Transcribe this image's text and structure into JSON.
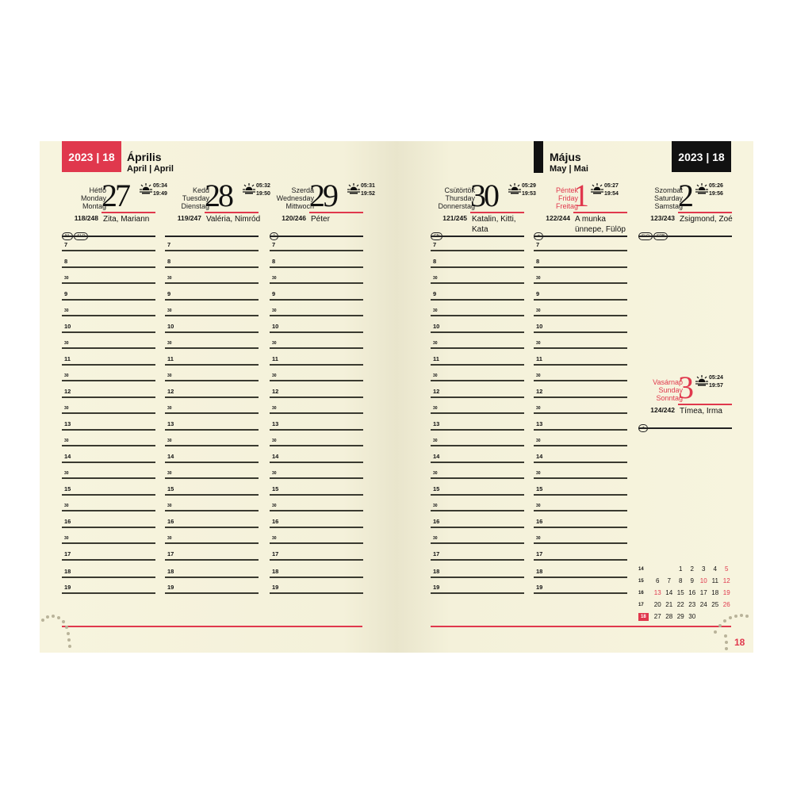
{
  "colors": {
    "accent": "#e0384d",
    "dark": "#111111",
    "paper": "#f6f3dc"
  },
  "left": {
    "badge": "2023 | 18",
    "month": "Április",
    "month_sub": "April | April"
  },
  "right": {
    "badge": "2023 | 18",
    "month": "Május",
    "month_sub": "May | Mai",
    "page_number": "18"
  },
  "days": [
    {
      "names": [
        "Hétfő",
        "Monday",
        "Montag"
      ],
      "num": "27",
      "rise": "05:34",
      "set": "19:49",
      "doy": "118/248",
      "nameday": "Zita, Mariann",
      "tags": [
        "NL",
        "SLO"
      ],
      "red": false
    },
    {
      "names": [
        "Kedd",
        "Tuesday",
        "Dienstag"
      ],
      "num": "28",
      "rise": "05:32",
      "set": "19:50",
      "doy": "119/247",
      "nameday": "Valéria, Nimród",
      "tags": [],
      "red": false
    },
    {
      "names": [
        "Szerda",
        "Wednesday",
        "Mittwoch"
      ],
      "num": "29",
      "rise": "05:31",
      "set": "19:52",
      "doy": "120/246",
      "nameday": "Péter",
      "tags": [
        "J"
      ],
      "red": false
    },
    {
      "names": [
        "Csütörtök",
        "Thursday",
        "Donnerstag"
      ],
      "num": "30",
      "rise": "05:29",
      "set": "19:53",
      "doy": "121/245",
      "nameday": "Katalin, Kitti, Kata",
      "tags": [
        "CN"
      ],
      "red": false
    },
    {
      "names": [
        "Péntek",
        "Friday",
        "Freitag"
      ],
      "num": "1",
      "rise": "05:27",
      "set": "19:54",
      "doy": "122/244",
      "nameday": "A munka ünnepe, Fülöp",
      "tags": [
        "★"
      ],
      "red": true
    },
    {
      "names": [
        "Szombat",
        "Saturday",
        "Samstag"
      ],
      "num": "2",
      "rise": "05:26",
      "set": "19:56",
      "doy": "123/243",
      "nameday": "Zsigmond, Zoé",
      "tags": [
        "SLO",
        "SRB"
      ],
      "red": false
    },
    {
      "names": [
        "Vasárnap",
        "Sunday",
        "Sonntag"
      ],
      "num": "3",
      "rise": "05:24",
      "set": "19:57",
      "doy": "124/242",
      "nameday": "Tímea, Irma",
      "tags": [
        "★"
      ],
      "red": true
    }
  ],
  "hours": [
    "7",
    "8",
    "30",
    "9",
    "30",
    "10",
    "30",
    "11",
    "30",
    "12",
    "30",
    "13",
    "30",
    "14",
    "30",
    "15",
    "30",
    "16",
    "30",
    "17",
    "18",
    "19"
  ],
  "mini_calendar": [
    {
      "week": "14",
      "days": [
        "",
        "",
        "1",
        "2",
        "3",
        "4",
        "5"
      ],
      "red": [
        6
      ]
    },
    {
      "week": "15",
      "days": [
        "6",
        "7",
        "8",
        "9",
        "10",
        "11",
        "12"
      ],
      "red": [
        4,
        6
      ]
    },
    {
      "week": "16",
      "days": [
        "13",
        "14",
        "15",
        "16",
        "17",
        "18",
        "19"
      ],
      "red": [
        0,
        6
      ]
    },
    {
      "week": "17",
      "days": [
        "20",
        "21",
        "22",
        "23",
        "24",
        "25",
        "26"
      ],
      "red": [
        6
      ]
    },
    {
      "week": "18",
      "days": [
        "27",
        "28",
        "29",
        "30",
        "",
        "",
        ""
      ],
      "red": [],
      "current": true
    }
  ]
}
